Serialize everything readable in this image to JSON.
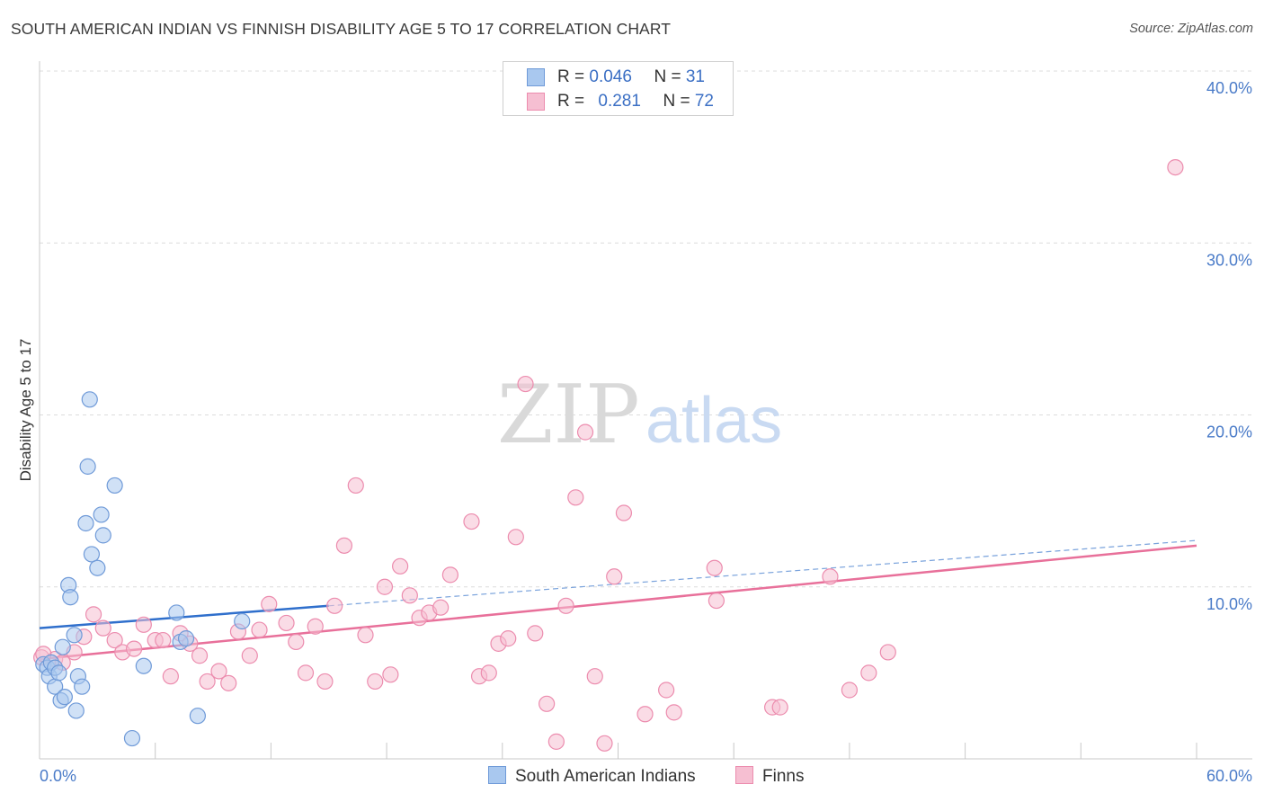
{
  "header": {
    "title": "SOUTH AMERICAN INDIAN VS FINNISH DISABILITY AGE 5 TO 17 CORRELATION CHART",
    "source": "Source: ZipAtlas.com"
  },
  "watermark": {
    "zip": "ZIP",
    "atlas": "atlas"
  },
  "legend": {
    "rows": [
      {
        "r_label": "R = ",
        "r_value": "0.046",
        "n_label": "N = ",
        "n_value": "31"
      },
      {
        "r_label": "R = ",
        "r_value": "0.281",
        "n_label": "N = ",
        "n_value": "72"
      }
    ]
  },
  "bottom_legend": {
    "series1": "South American Indians",
    "series2": "Finns"
  },
  "colors": {
    "blue_fill": "#a9c8ef",
    "blue_stroke": "#6f9ad8",
    "blue_line": "#2f6fcc",
    "pink_fill": "#f6bfd2",
    "pink_stroke": "#ec8cae",
    "pink_line": "#e8709a",
    "tick_text": "#4a7bc8",
    "grid": "#dcdcdc"
  },
  "chart_data": {
    "type": "scatter",
    "title": "SOUTH AMERICAN INDIAN VS FINNISH DISABILITY AGE 5 TO 17 CORRELATION CHART",
    "xlabel": "",
    "ylabel": "Disability Age 5 to 17",
    "xlim": [
      0,
      60
    ],
    "ylim": [
      0,
      40
    ],
    "x_tick_labels": [
      "0.0%",
      "60.0%"
    ],
    "y_ticks": [
      10,
      20,
      30,
      40
    ],
    "y_tick_labels": [
      "10.0%",
      "20.0%",
      "30.0%",
      "40.0%"
    ],
    "grid": true,
    "series": [
      {
        "name": "South American Indians",
        "R": 0.046,
        "N": 31,
        "trend": {
          "x0": 0,
          "y0": 7.6,
          "x1": 15,
          "y1": 8.9,
          "dashed_to_x": 60,
          "dashed_to_y": 12.7
        },
        "points": [
          [
            0.2,
            5.5
          ],
          [
            0.4,
            5.3
          ],
          [
            0.5,
            4.8
          ],
          [
            0.6,
            5.6
          ],
          [
            0.8,
            4.2
          ],
          [
            0.8,
            5.3
          ],
          [
            1.0,
            5.0
          ],
          [
            1.1,
            3.4
          ],
          [
            1.2,
            6.5
          ],
          [
            1.3,
            3.6
          ],
          [
            1.5,
            10.1
          ],
          [
            1.6,
            9.4
          ],
          [
            1.8,
            7.2
          ],
          [
            1.9,
            2.8
          ],
          [
            2.0,
            4.8
          ],
          [
            2.2,
            4.2
          ],
          [
            2.4,
            13.7
          ],
          [
            2.5,
            17.0
          ],
          [
            2.6,
            20.9
          ],
          [
            2.7,
            11.9
          ],
          [
            3.0,
            11.1
          ],
          [
            3.2,
            14.2
          ],
          [
            3.3,
            13.0
          ],
          [
            3.9,
            15.9
          ],
          [
            4.8,
            1.2
          ],
          [
            5.4,
            5.4
          ],
          [
            7.1,
            8.5
          ],
          [
            7.3,
            6.8
          ],
          [
            7.6,
            7.0
          ],
          [
            8.2,
            2.5
          ],
          [
            10.5,
            8.0
          ]
        ]
      },
      {
        "name": "Finns",
        "R": 0.281,
        "N": 72,
        "trend": {
          "x0": 0,
          "y0": 5.8,
          "x1": 60,
          "y1": 12.4
        },
        "points": [
          [
            0.1,
            5.9
          ],
          [
            0.8,
            5.8
          ],
          [
            1.2,
            5.6
          ],
          [
            1.8,
            6.2
          ],
          [
            2.3,
            7.1
          ],
          [
            2.8,
            8.4
          ],
          [
            3.3,
            7.6
          ],
          [
            3.9,
            6.9
          ],
          [
            4.3,
            6.2
          ],
          [
            4.9,
            6.4
          ],
          [
            5.4,
            7.8
          ],
          [
            6.0,
            6.9
          ],
          [
            6.4,
            6.9
          ],
          [
            6.8,
            4.8
          ],
          [
            7.3,
            7.3
          ],
          [
            7.8,
            6.7
          ],
          [
            8.3,
            6.0
          ],
          [
            8.7,
            4.5
          ],
          [
            9.3,
            5.1
          ],
          [
            9.8,
            4.4
          ],
          [
            10.3,
            7.4
          ],
          [
            10.9,
            6.0
          ],
          [
            11.4,
            7.5
          ],
          [
            11.9,
            9.0
          ],
          [
            12.8,
            7.9
          ],
          [
            13.3,
            6.8
          ],
          [
            13.8,
            5.0
          ],
          [
            14.3,
            7.7
          ],
          [
            14.8,
            4.5
          ],
          [
            15.3,
            8.9
          ],
          [
            15.8,
            12.4
          ],
          [
            16.4,
            15.9
          ],
          [
            16.9,
            7.2
          ],
          [
            17.4,
            4.5
          ],
          [
            17.9,
            10.0
          ],
          [
            18.2,
            4.9
          ],
          [
            18.7,
            11.2
          ],
          [
            19.2,
            9.5
          ],
          [
            19.7,
            8.2
          ],
          [
            20.2,
            8.5
          ],
          [
            20.8,
            8.8
          ],
          [
            21.3,
            10.7
          ],
          [
            22.4,
            13.8
          ],
          [
            22.8,
            4.8
          ],
          [
            23.3,
            5.0
          ],
          [
            23.8,
            6.7
          ],
          [
            24.3,
            7.0
          ],
          [
            24.7,
            12.9
          ],
          [
            25.2,
            21.8
          ],
          [
            25.7,
            7.3
          ],
          [
            26.3,
            3.2
          ],
          [
            26.8,
            1.0
          ],
          [
            27.3,
            8.9
          ],
          [
            27.8,
            15.2
          ],
          [
            28.3,
            19.0
          ],
          [
            28.8,
            4.8
          ],
          [
            29.3,
            0.9
          ],
          [
            29.8,
            10.6
          ],
          [
            30.3,
            14.3
          ],
          [
            31.4,
            2.6
          ],
          [
            32.5,
            4.0
          ],
          [
            32.9,
            2.7
          ],
          [
            35.0,
            11.1
          ],
          [
            35.1,
            9.2
          ],
          [
            38.0,
            3.0
          ],
          [
            38.4,
            3.0
          ],
          [
            41.0,
            10.6
          ],
          [
            42.0,
            4.0
          ],
          [
            43.0,
            5.0
          ],
          [
            44.0,
            6.2
          ],
          [
            58.9,
            34.4
          ],
          [
            0.2,
            6.1
          ]
        ]
      }
    ]
  }
}
